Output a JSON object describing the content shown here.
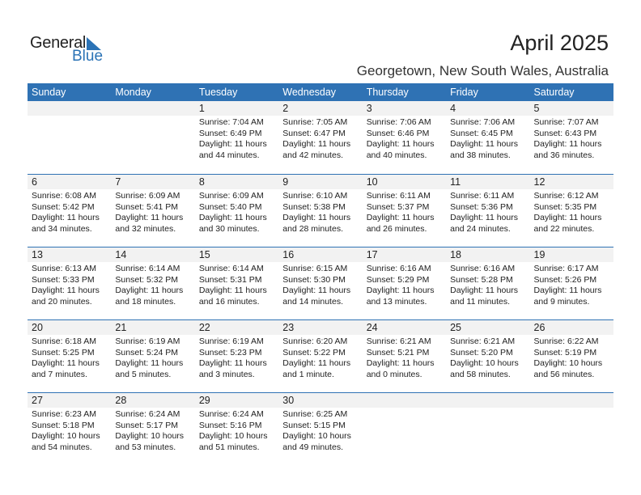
{
  "logo": {
    "general": "General",
    "blue": "Blue"
  },
  "title": "April 2025",
  "subtitle": "Georgetown, New South Wales, Australia",
  "weekdays": [
    "Sunday",
    "Monday",
    "Tuesday",
    "Wednesday",
    "Thursday",
    "Friday",
    "Saturday"
  ],
  "weeks": [
    [
      null,
      null,
      {
        "day": "1",
        "sunrise": "Sunrise: 7:04 AM",
        "sunset": "Sunset: 6:49 PM",
        "daylight": "Daylight: 11 hours",
        "minutes": "and 44 minutes."
      },
      {
        "day": "2",
        "sunrise": "Sunrise: 7:05 AM",
        "sunset": "Sunset: 6:47 PM",
        "daylight": "Daylight: 11 hours",
        "minutes": "and 42 minutes."
      },
      {
        "day": "3",
        "sunrise": "Sunrise: 7:06 AM",
        "sunset": "Sunset: 6:46 PM",
        "daylight": "Daylight: 11 hours",
        "minutes": "and 40 minutes."
      },
      {
        "day": "4",
        "sunrise": "Sunrise: 7:06 AM",
        "sunset": "Sunset: 6:45 PM",
        "daylight": "Daylight: 11 hours",
        "minutes": "and 38 minutes."
      },
      {
        "day": "5",
        "sunrise": "Sunrise: 7:07 AM",
        "sunset": "Sunset: 6:43 PM",
        "daylight": "Daylight: 11 hours",
        "minutes": "and 36 minutes."
      }
    ],
    [
      {
        "day": "6",
        "sunrise": "Sunrise: 6:08 AM",
        "sunset": "Sunset: 5:42 PM",
        "daylight": "Daylight: 11 hours",
        "minutes": "and 34 minutes."
      },
      {
        "day": "7",
        "sunrise": "Sunrise: 6:09 AM",
        "sunset": "Sunset: 5:41 PM",
        "daylight": "Daylight: 11 hours",
        "minutes": "and 32 minutes."
      },
      {
        "day": "8",
        "sunrise": "Sunrise: 6:09 AM",
        "sunset": "Sunset: 5:40 PM",
        "daylight": "Daylight: 11 hours",
        "minutes": "and 30 minutes."
      },
      {
        "day": "9",
        "sunrise": "Sunrise: 6:10 AM",
        "sunset": "Sunset: 5:38 PM",
        "daylight": "Daylight: 11 hours",
        "minutes": "and 28 minutes."
      },
      {
        "day": "10",
        "sunrise": "Sunrise: 6:11 AM",
        "sunset": "Sunset: 5:37 PM",
        "daylight": "Daylight: 11 hours",
        "minutes": "and 26 minutes."
      },
      {
        "day": "11",
        "sunrise": "Sunrise: 6:11 AM",
        "sunset": "Sunset: 5:36 PM",
        "daylight": "Daylight: 11 hours",
        "minutes": "and 24 minutes."
      },
      {
        "day": "12",
        "sunrise": "Sunrise: 6:12 AM",
        "sunset": "Sunset: 5:35 PM",
        "daylight": "Daylight: 11 hours",
        "minutes": "and 22 minutes."
      }
    ],
    [
      {
        "day": "13",
        "sunrise": "Sunrise: 6:13 AM",
        "sunset": "Sunset: 5:33 PM",
        "daylight": "Daylight: 11 hours",
        "minutes": "and 20 minutes."
      },
      {
        "day": "14",
        "sunrise": "Sunrise: 6:14 AM",
        "sunset": "Sunset: 5:32 PM",
        "daylight": "Daylight: 11 hours",
        "minutes": "and 18 minutes."
      },
      {
        "day": "15",
        "sunrise": "Sunrise: 6:14 AM",
        "sunset": "Sunset: 5:31 PM",
        "daylight": "Daylight: 11 hours",
        "minutes": "and 16 minutes."
      },
      {
        "day": "16",
        "sunrise": "Sunrise: 6:15 AM",
        "sunset": "Sunset: 5:30 PM",
        "daylight": "Daylight: 11 hours",
        "minutes": "and 14 minutes."
      },
      {
        "day": "17",
        "sunrise": "Sunrise: 6:16 AM",
        "sunset": "Sunset: 5:29 PM",
        "daylight": "Daylight: 11 hours",
        "minutes": "and 13 minutes."
      },
      {
        "day": "18",
        "sunrise": "Sunrise: 6:16 AM",
        "sunset": "Sunset: 5:28 PM",
        "daylight": "Daylight: 11 hours",
        "minutes": "and 11 minutes."
      },
      {
        "day": "19",
        "sunrise": "Sunrise: 6:17 AM",
        "sunset": "Sunset: 5:26 PM",
        "daylight": "Daylight: 11 hours",
        "minutes": "and 9 minutes."
      }
    ],
    [
      {
        "day": "20",
        "sunrise": "Sunrise: 6:18 AM",
        "sunset": "Sunset: 5:25 PM",
        "daylight": "Daylight: 11 hours",
        "minutes": "and 7 minutes."
      },
      {
        "day": "21",
        "sunrise": "Sunrise: 6:19 AM",
        "sunset": "Sunset: 5:24 PM",
        "daylight": "Daylight: 11 hours",
        "minutes": "and 5 minutes."
      },
      {
        "day": "22",
        "sunrise": "Sunrise: 6:19 AM",
        "sunset": "Sunset: 5:23 PM",
        "daylight": "Daylight: 11 hours",
        "minutes": "and 3 minutes."
      },
      {
        "day": "23",
        "sunrise": "Sunrise: 6:20 AM",
        "sunset": "Sunset: 5:22 PM",
        "daylight": "Daylight: 11 hours",
        "minutes": "and 1 minute."
      },
      {
        "day": "24",
        "sunrise": "Sunrise: 6:21 AM",
        "sunset": "Sunset: 5:21 PM",
        "daylight": "Daylight: 11 hours",
        "minutes": "and 0 minutes."
      },
      {
        "day": "25",
        "sunrise": "Sunrise: 6:21 AM",
        "sunset": "Sunset: 5:20 PM",
        "daylight": "Daylight: 10 hours",
        "minutes": "and 58 minutes."
      },
      {
        "day": "26",
        "sunrise": "Sunrise: 6:22 AM",
        "sunset": "Sunset: 5:19 PM",
        "daylight": "Daylight: 10 hours",
        "minutes": "and 56 minutes."
      }
    ],
    [
      {
        "day": "27",
        "sunrise": "Sunrise: 6:23 AM",
        "sunset": "Sunset: 5:18 PM",
        "daylight": "Daylight: 10 hours",
        "minutes": "and 54 minutes."
      },
      {
        "day": "28",
        "sunrise": "Sunrise: 6:24 AM",
        "sunset": "Sunset: 5:17 PM",
        "daylight": "Daylight: 10 hours",
        "minutes": "and 53 minutes."
      },
      {
        "day": "29",
        "sunrise": "Sunrise: 6:24 AM",
        "sunset": "Sunset: 5:16 PM",
        "daylight": "Daylight: 10 hours",
        "minutes": "and 51 minutes."
      },
      {
        "day": "30",
        "sunrise": "Sunrise: 6:25 AM",
        "sunset": "Sunset: 5:15 PM",
        "daylight": "Daylight: 10 hours",
        "minutes": "and 49 minutes."
      },
      null,
      null,
      null
    ]
  ],
  "colors": {
    "header": "#2f72b4",
    "brand": "#2b73b6",
    "dayrow": "#f2f2f2"
  }
}
